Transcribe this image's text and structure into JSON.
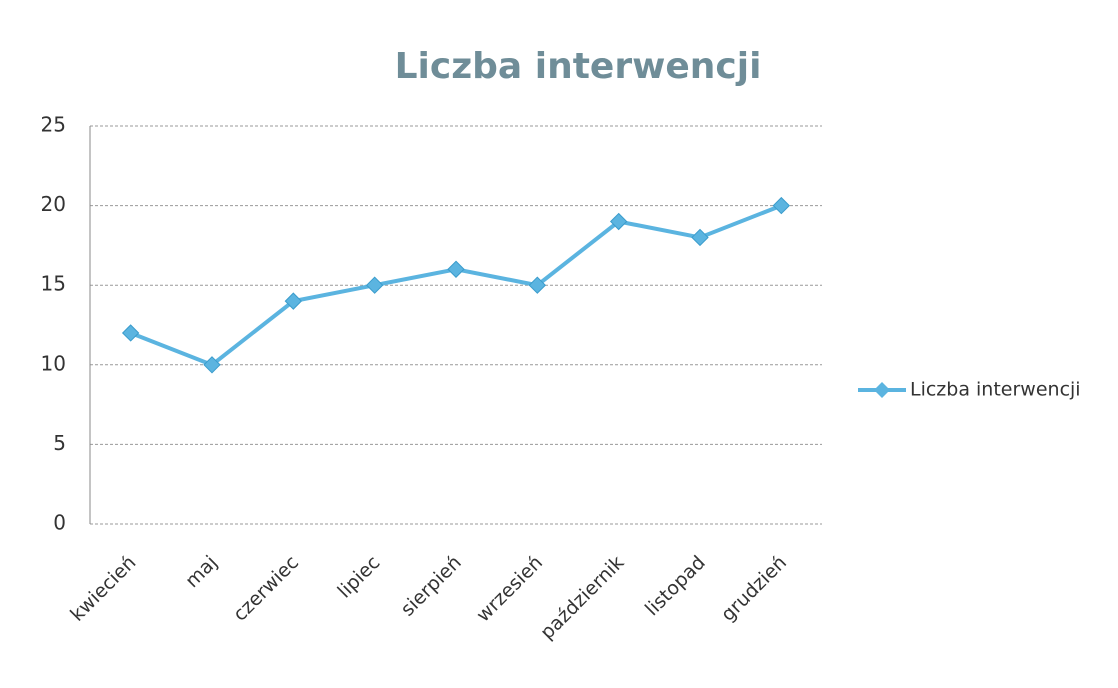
{
  "chart_data": {
    "type": "line",
    "title": "Liczba interwencji",
    "categories": [
      "kwiecień",
      "maj",
      "czerwiec",
      "lipiec",
      "sierpień",
      "wrzesień",
      "październik",
      "listopad",
      "grudzień"
    ],
    "series": [
      {
        "name": "Liczba interwencji",
        "color": "#5bb4e0",
        "values": [
          12,
          10,
          14,
          15,
          16,
          15,
          19,
          18,
          20
        ]
      }
    ],
    "ylim": [
      0,
      25
    ],
    "yticks": [
      0,
      5,
      10,
      15,
      20,
      25
    ],
    "grid": true,
    "legend": "right"
  }
}
